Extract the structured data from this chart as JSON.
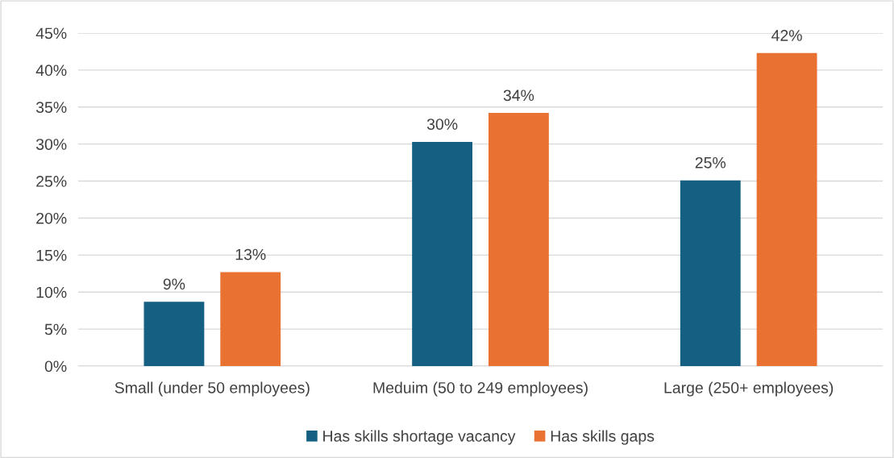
{
  "chart_data": {
    "type": "bar",
    "categories": [
      "Small (under 50 employees)",
      "Meduim (50 to 249 employees)",
      "Large (250+ employees)"
    ],
    "series": [
      {
        "name": "Has skills shortage vacancy",
        "color": "#156082",
        "values": [
          8.7,
          30.3,
          25.1
        ],
        "value_labels": [
          "9%",
          "30%",
          "25%"
        ]
      },
      {
        "name": "Has skills gaps",
        "color": "#e97132",
        "values": [
          12.7,
          34.2,
          42.3
        ],
        "value_labels": [
          "13%",
          "34%",
          "42%"
        ]
      }
    ],
    "ylim": [
      0,
      45
    ],
    "yticks": [
      {
        "value": 0,
        "label": "0%"
      },
      {
        "value": 5,
        "label": "5%"
      },
      {
        "value": 10,
        "label": "10%"
      },
      {
        "value": 15,
        "label": "15%"
      },
      {
        "value": 20,
        "label": "20%"
      },
      {
        "value": 25,
        "label": "25%"
      },
      {
        "value": 30,
        "label": "30%"
      },
      {
        "value": 35,
        "label": "35%"
      },
      {
        "value": 40,
        "label": "40%"
      },
      {
        "value": 45,
        "label": "45%"
      }
    ],
    "grid": "y",
    "legend": "bottom"
  }
}
